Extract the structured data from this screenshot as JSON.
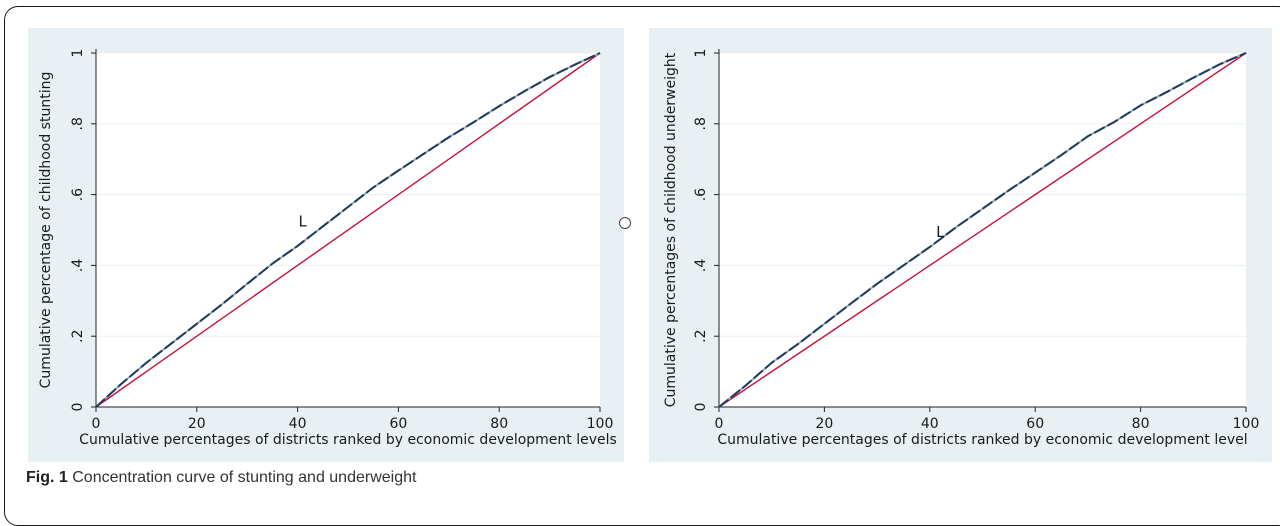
{
  "figure": {
    "label": "Fig. 1",
    "caption": "Concentration curve of stunting and underweight"
  },
  "colors": {
    "panel_bg": "#e9f0f3",
    "equality_line": "#c8103a",
    "curve_dark": "#1f3a5f",
    "curve_dash_light": "#9aa8b6",
    "grid": "#ffffff"
  },
  "chart_data": [
    {
      "type": "line",
      "xlabel": "Cumulative percentages of districts ranked by economic development levels",
      "ylabel": "Cumulative percentage of childhood stunting",
      "xlim": [
        0,
        100
      ],
      "ylim": [
        0,
        1
      ],
      "xticks": [
        0,
        20,
        40,
        60,
        80,
        100
      ],
      "yticks": [
        0,
        0.2,
        0.4,
        0.6,
        0.8,
        1
      ],
      "ytick_labels": [
        "0",
        ".2",
        ".4",
        ".6",
        ".8",
        "1"
      ],
      "grid": true,
      "annotation": {
        "text": "L",
        "x": 41,
        "y": 0.51
      },
      "series": [
        {
          "role": "concentration-curve",
          "x": [
            0,
            5,
            10,
            15,
            20,
            25,
            30,
            35,
            40,
            45,
            50,
            55,
            60,
            65,
            70,
            75,
            80,
            85,
            90,
            95,
            100
          ],
          "values": [
            0,
            0.065,
            0.125,
            0.18,
            0.235,
            0.29,
            0.348,
            0.405,
            0.455,
            0.51,
            0.565,
            0.62,
            0.668,
            0.715,
            0.762,
            0.805,
            0.85,
            0.892,
            0.932,
            0.967,
            1.0
          ]
        },
        {
          "role": "line-of-equality",
          "x": [
            0,
            100
          ],
          "values": [
            0,
            1.0
          ]
        }
      ]
    },
    {
      "type": "line",
      "xlabel": "Cumulative percentages of districts ranked by economic development level",
      "ylabel": "Cumulative percentages of childhood underweight",
      "xlim": [
        0,
        100
      ],
      "ylim": [
        0,
        1
      ],
      "xticks": [
        0,
        20,
        40,
        60,
        80,
        100
      ],
      "yticks": [
        0,
        0.2,
        0.4,
        0.6,
        0.8,
        1
      ],
      "ytick_labels": [
        "0",
        ".2",
        ".4",
        ".6",
        ".8",
        "1"
      ],
      "grid": true,
      "annotation": {
        "text": "L",
        "x": 42,
        "y": 0.48
      },
      "series": [
        {
          "role": "concentration-curve",
          "x": [
            0,
            5,
            10,
            15,
            20,
            25,
            30,
            35,
            40,
            45,
            50,
            55,
            60,
            65,
            70,
            75,
            80,
            85,
            90,
            95,
            100
          ],
          "values": [
            0,
            0.06,
            0.125,
            0.178,
            0.235,
            0.292,
            0.348,
            0.4,
            0.452,
            0.508,
            0.56,
            0.612,
            0.662,
            0.712,
            0.765,
            0.805,
            0.852,
            0.89,
            0.93,
            0.968,
            1.0
          ]
        },
        {
          "role": "line-of-equality",
          "x": [
            0,
            100
          ],
          "values": [
            0,
            1.0
          ]
        }
      ]
    }
  ]
}
